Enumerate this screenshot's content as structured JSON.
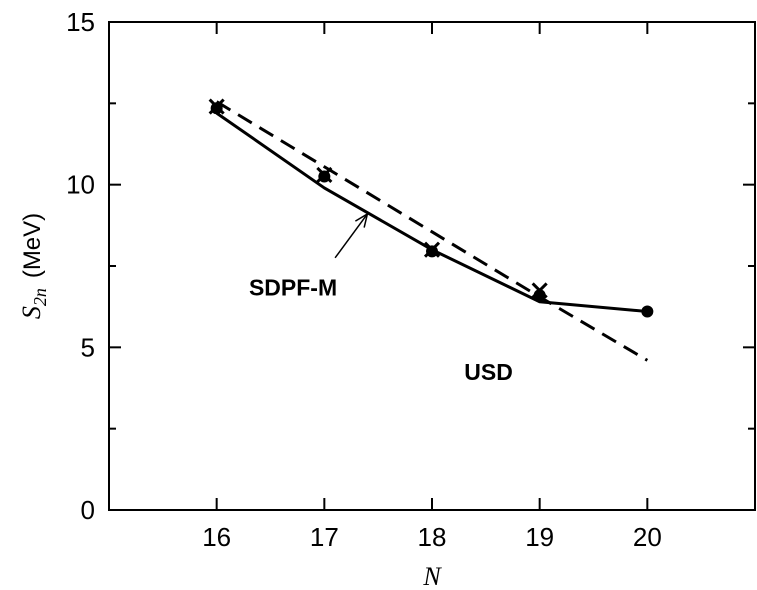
{
  "chart_data": {
    "type": "line",
    "xlabel": "N",
    "ylabel_symbol": "S",
    "ylabel_subscript": "2n",
    "ylabel_unit": "(MeV)",
    "xlim": [
      15,
      21
    ],
    "ylim": [
      0,
      15
    ],
    "x_ticks": [
      16,
      17,
      18,
      19,
      20
    ],
    "y_ticks": [
      0,
      5,
      10,
      15
    ],
    "y_minor_ticks": [
      2.5,
      7.5,
      12.5
    ],
    "grid": false,
    "series": [
      {
        "name": "SDPF-M",
        "style": "solid",
        "x": [
          16,
          17,
          18,
          19,
          20
        ],
        "y": [
          12.2,
          9.9,
          8.0,
          6.4,
          6.1
        ]
      },
      {
        "name": "USD",
        "style": "dashed",
        "x": [
          16,
          17,
          18,
          19,
          20
        ],
        "y": [
          12.55,
          10.55,
          8.55,
          6.55,
          4.6
        ]
      }
    ],
    "experimental_points": {
      "x": [
        16,
        17,
        18,
        19,
        20
      ],
      "y": [
        12.35,
        10.25,
        7.95,
        6.6,
        6.1
      ],
      "marker": "filled-circle"
    },
    "cross_points": {
      "x": [
        16,
        17,
        18,
        19
      ],
      "y": [
        12.4,
        10.3,
        8.0,
        6.75
      ],
      "marker": "cross"
    },
    "annotations": [
      {
        "text": "SDPF-M",
        "x": 16.3,
        "y": 6.6,
        "arrow_to": [
          17.4,
          9.1
        ],
        "arrow_from": [
          17.1,
          7.75
        ]
      },
      {
        "text": "USD",
        "x": 18.3,
        "y": 4.0
      }
    ]
  }
}
